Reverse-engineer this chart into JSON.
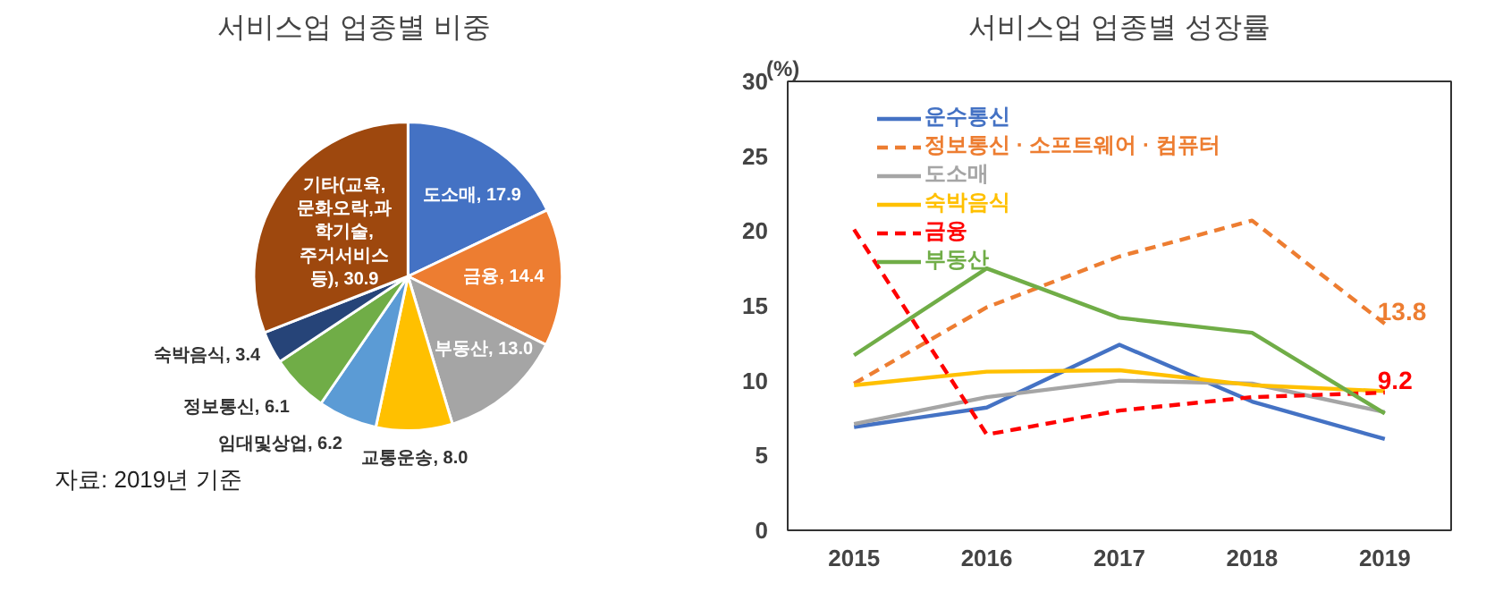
{
  "chart_data": [
    {
      "type": "pie",
      "title": "서비스업 업종별 비중",
      "categories": [
        "도소매",
        "금융",
        "부동산",
        "교통운송",
        "임대및상업",
        "정보통신",
        "숙박음식",
        "기타(교육,문화오락,과학기술, 주거서비스 등)"
      ],
      "values": [
        17.9,
        14.4,
        13.0,
        8.0,
        6.2,
        6.1,
        3.4,
        30.9
      ],
      "colors": [
        "#4472c4",
        "#ed7d31",
        "#a5a5a5",
        "#ffc000",
        "#5b9bd5",
        "#70ad47",
        "#264478",
        "#9e480e"
      ],
      "value_labels": [
        "17.9",
        "14.4",
        "13.0",
        "8.0",
        "6.2",
        "6.1",
        "3.4",
        "30.9"
      ],
      "annotations": [
        "자료: 2019년 기준"
      ]
    },
    {
      "type": "line",
      "title": "서비스업 업종별 성장률",
      "ylabel": "(%)",
      "categories": [
        "2015",
        "2016",
        "2017",
        "2018",
        "2019"
      ],
      "ylim": [
        0,
        30
      ],
      "yticks": [
        0,
        5,
        10,
        15,
        20,
        25,
        30
      ],
      "grid": false,
      "legend": "top left",
      "series": [
        {
          "name": "운수통신",
          "color": "#4472c4",
          "line_style": "solid",
          "values": [
            6.9,
            8.2,
            12.4,
            8.6,
            6.1
          ]
        },
        {
          "name": "정보통신 · 소프트웨어 · 컴퓨터",
          "color": "#ed7d31",
          "line_style": "dashed",
          "values": [
            9.8,
            14.9,
            18.3,
            20.7,
            13.8
          ],
          "value_labels": [
            null,
            null,
            null,
            null,
            "13.8"
          ]
        },
        {
          "name": "도소매",
          "color": "#a5a5a5",
          "line_style": "solid",
          "values": [
            7.1,
            8.9,
            10.0,
            9.8,
            7.9
          ]
        },
        {
          "name": "숙박음식",
          "color": "#ffc000",
          "line_style": "solid",
          "values": [
            9.7,
            10.6,
            10.7,
            9.7,
            9.3
          ]
        },
        {
          "name": "금융",
          "color": "#ff0000",
          "line_style": "dashed",
          "values": [
            20.1,
            6.4,
            8.0,
            8.9,
            9.2
          ],
          "value_labels": [
            null,
            null,
            null,
            null,
            "9.2"
          ]
        },
        {
          "name": "부동산",
          "color": "#70ad47",
          "line_style": "solid",
          "values": [
            11.7,
            17.5,
            14.2,
            13.2,
            7.8
          ]
        }
      ]
    }
  ]
}
